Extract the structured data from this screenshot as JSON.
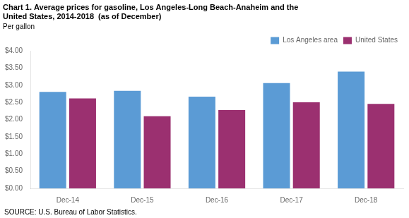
{
  "chart_data": {
    "type": "bar",
    "title": [
      "Chart 1. Average prices for gasoline, Los Angeles-Long Beach-Anaheim and the",
      "United States, 2014-2018  (as of December)"
    ],
    "ylabel": "Per gallon",
    "source": "SOURCE: U.S. Bureau of Labor Statistics.",
    "categories": [
      "Dec-14",
      "Dec-15",
      "Dec-16",
      "Dec-17",
      "Dec-18"
    ],
    "series": [
      {
        "name": "Los Angeles area",
        "color": "#5B9BD5",
        "values": [
          2.81,
          2.84,
          2.67,
          3.07,
          3.4
        ]
      },
      {
        "name": "United States",
        "color": "#9B3070",
        "values": [
          2.62,
          2.1,
          2.28,
          2.51,
          2.46
        ]
      }
    ],
    "ylim": [
      0,
      4.0
    ],
    "yticks": [
      {
        "value": 0.0,
        "label": "$0.00"
      },
      {
        "value": 0.5,
        "label": "$0.50"
      },
      {
        "value": 1.0,
        "label": "$1.00"
      },
      {
        "value": 1.5,
        "label": "$1.50"
      },
      {
        "value": 2.0,
        "label": "$2.00"
      },
      {
        "value": 2.5,
        "label": "$2.50"
      },
      {
        "value": 3.0,
        "label": "$3.00"
      },
      {
        "value": 3.5,
        "label": "$3.50"
      },
      {
        "value": 4.0,
        "label": "$4.00"
      }
    ],
    "grid": false,
    "legend": "upper right"
  }
}
